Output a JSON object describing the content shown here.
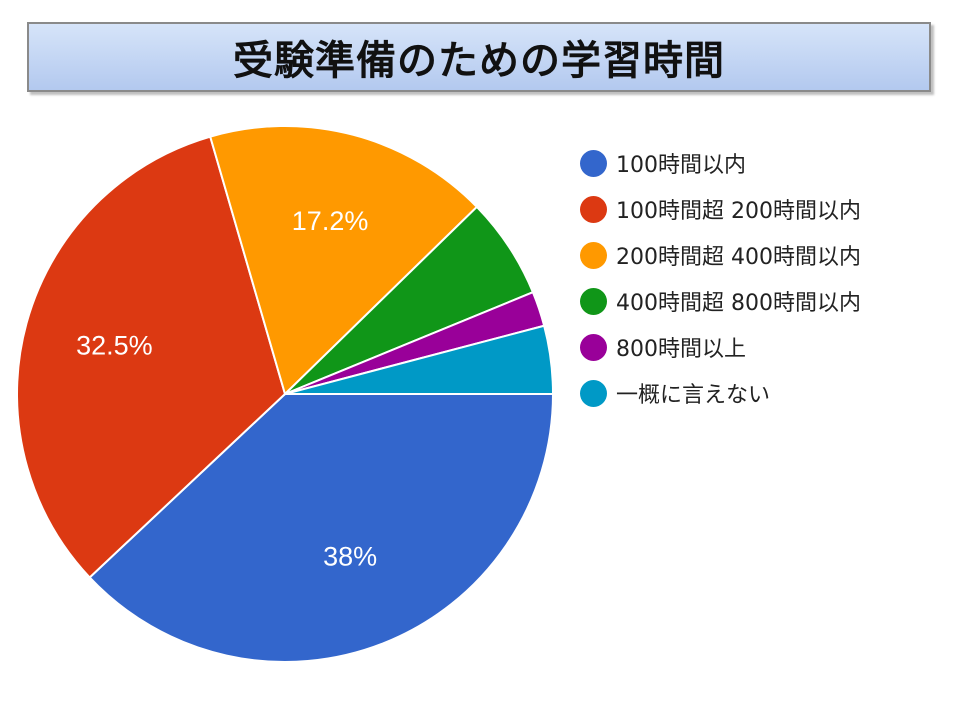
{
  "chart_data": {
    "type": "pie",
    "title": "受験準備のための学習時間",
    "categories": [
      "100時間以内",
      "100時間超 200時間以内",
      "200時間超 400時間以内",
      "400時間超 800時間以内",
      "800時間以上",
      "一概に言えない"
    ],
    "values": [
      38.0,
      32.5,
      17.2,
      6.1,
      2.1,
      4.1
    ],
    "data_labels": [
      "38%",
      "32.5%",
      "17.2%",
      "",
      "",
      ""
    ],
    "colors": [
      "#3366cc",
      "#dc3912",
      "#ff9900",
      "#109618",
      "#990099",
      "#0099c6"
    ],
    "legend_position": "right"
  }
}
